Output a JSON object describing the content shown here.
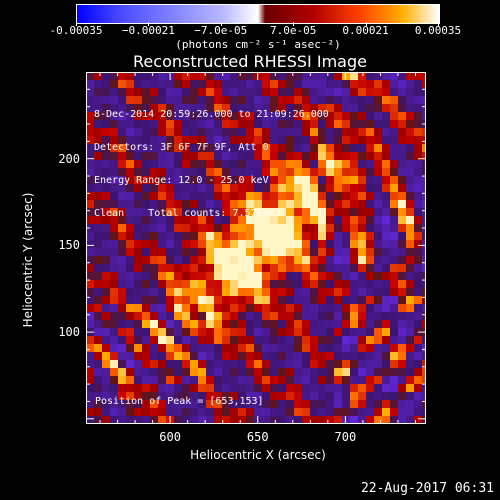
{
  "chart_data": {
    "type": "heatmap",
    "title": "Reconstructed RHESSI Image",
    "xlabel": "Heliocentric X (arcsec)",
    "ylabel": "Heliocentric Y (arcsec)",
    "xlim": [
      552,
      746
    ],
    "ylim": [
      47,
      250
    ],
    "xticks": [
      600,
      650,
      700
    ],
    "yticks": [
      100,
      150,
      200
    ],
    "peak": [
      653,
      153
    ],
    "colorbar": {
      "range": [
        -0.00035,
        0.00035
      ],
      "tick_labels": [
        "-0.00035",
        "−0.00021",
        "−7.0e-05",
        "7.0e-05",
        "0.00021",
        "0.00035"
      ],
      "units": "(photons cm⁻² s⁻¹ asec⁻²)"
    },
    "annotations": [
      "8-Dec-2014 20:59:26.000 to 21:09:26.000",
      "Detectors: 3F 6F 7F 9F, Att 0",
      "Energy Range: 12.0 - 25.0 keV",
      "Clean    Total counts: 7.57E+03"
    ],
    "peak_label": "Position of Peak = [653,153]"
  },
  "timestamp": "22-Aug-2017 06:31"
}
